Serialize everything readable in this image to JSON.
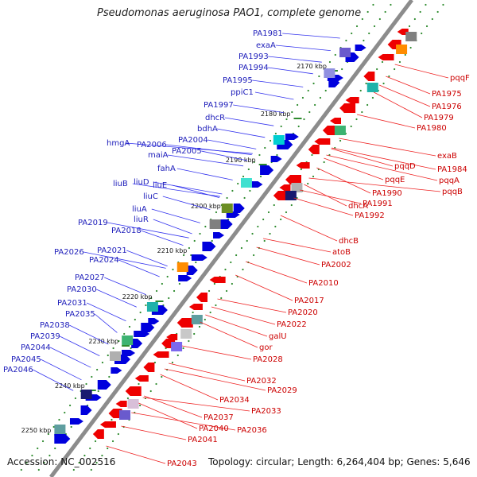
{
  "title": "Pseudomonas aeruginosa PAO1, complete genome",
  "footer": {
    "accession": "Accession: NC_002516",
    "topology": "Topology: circular; Length: 6,264,404 bp; Genes: 5,646"
  },
  "colors": {
    "forward_gene": "#0000dd",
    "reverse_gene": "#ee0000",
    "backbone": "#888888",
    "dots": "#2e8b2e"
  },
  "kbp_ticks": [
    "2170 kbp",
    "2180 kbp",
    "2190 kbp",
    "2200 kbp",
    "2210 kbp",
    "2220 kbp",
    "2230 kbp",
    "2240 kbp",
    "2250 kbp"
  ],
  "forward_labels": [
    "PA1981",
    "exaA",
    "PA1993",
    "PA1994",
    "PA1995",
    "ppiC1",
    "PA1997",
    "dhcR",
    "bdhA",
    "PA2004",
    "PA2005",
    "PA2006",
    "hmgA",
    "maiA",
    "fahA",
    "liuD",
    "liuE",
    "liuB",
    "liuC",
    "liuA",
    "liuR",
    "PA2018",
    "PA2019",
    "PA2021",
    "PA2026",
    "PA2024",
    "PA2027",
    "PA2030",
    "PA2031",
    "PA2035",
    "PA2038",
    "PA2039",
    "PA2044",
    "PA2045",
    "PA2046"
  ],
  "reverse_labels": [
    "pqqF",
    "PA1975",
    "PA1976",
    "PA1979",
    "PA1980",
    "exaB",
    "PA1984",
    "pqqA",
    "pqqB",
    "pqqD",
    "pqqE",
    "PA1990",
    "PA1991",
    "PA1992",
    "dhcA",
    "dhcB",
    "atoB",
    "PA2002",
    "PA2010",
    "PA2017",
    "PA2020",
    "PA2022",
    "galU",
    "gor",
    "PA2028",
    "PA2032",
    "PA2029",
    "PA2034",
    "PA2033",
    "PA2036",
    "PA2037",
    "PA2040",
    "PA2041",
    "PA2043"
  ]
}
